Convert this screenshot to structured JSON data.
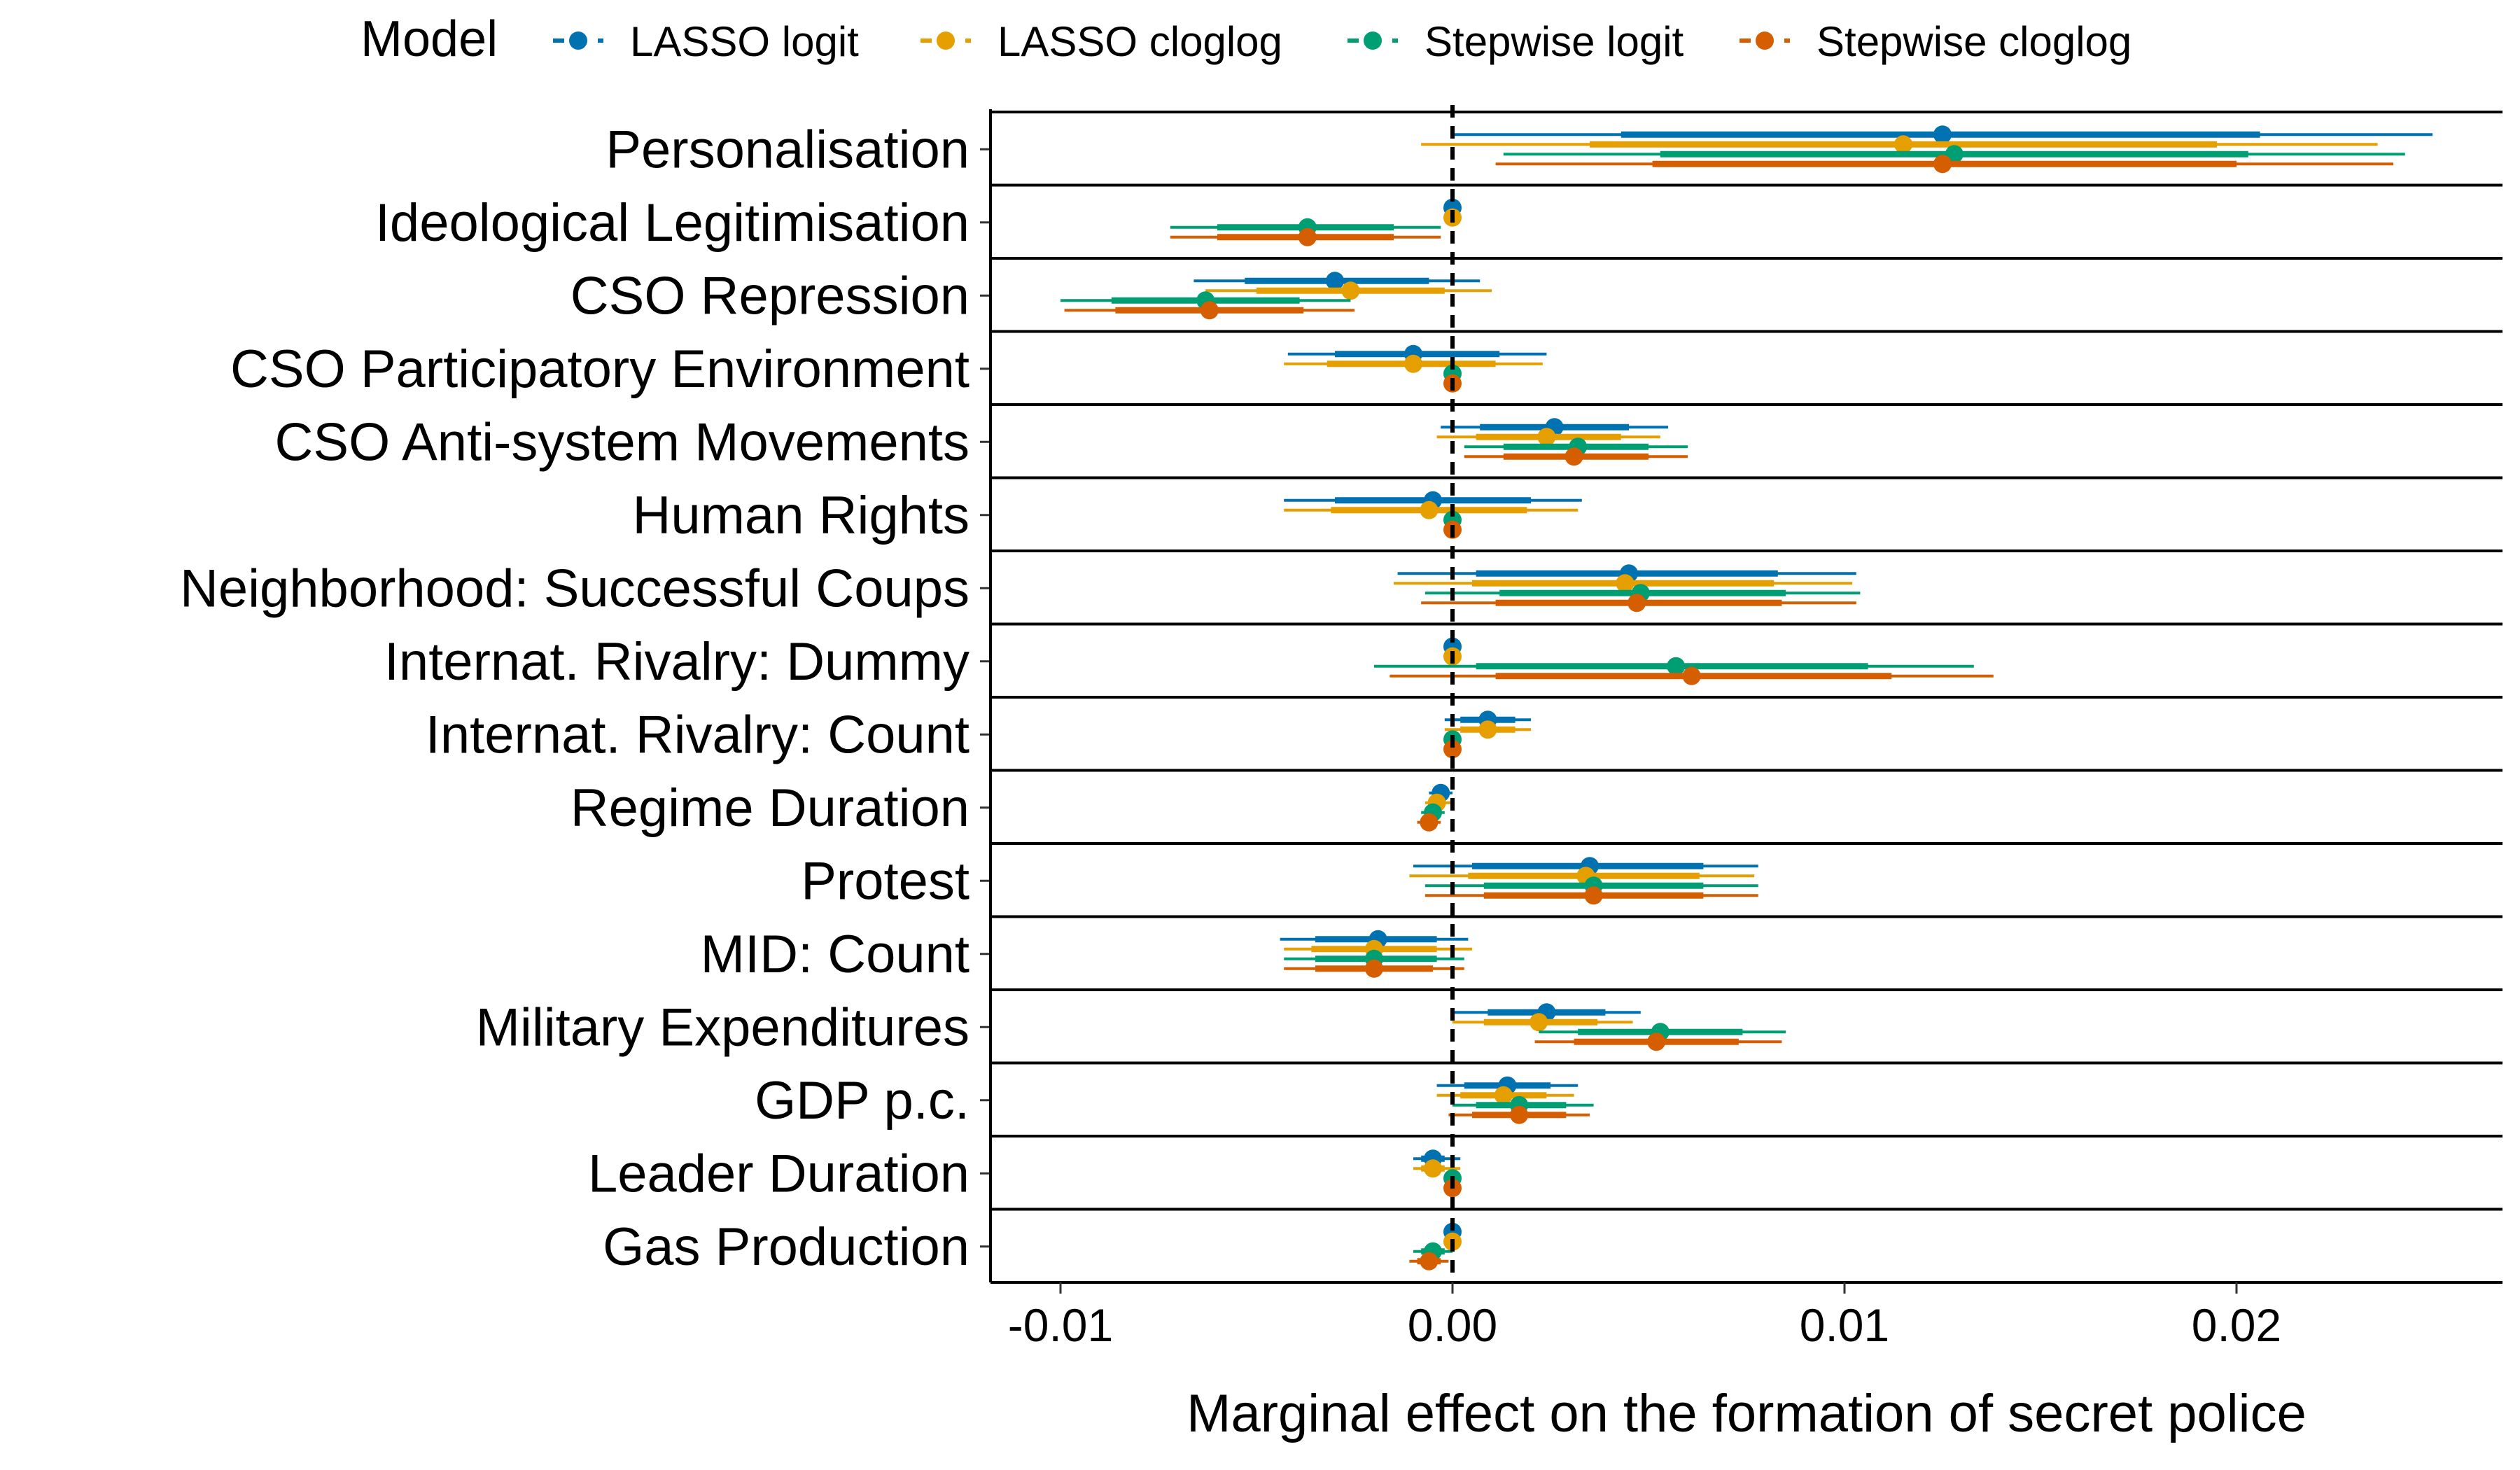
{
  "chart_data": {
    "type": "forest",
    "xlabel": "Marginal effect on the formation of secret police",
    "xlim": [
      -0.0115,
      0.0265
    ],
    "xticks": [
      -0.01,
      0.0,
      0.01,
      0.02
    ],
    "xtick_labels": [
      "-0.01",
      "0.00",
      "0.01",
      "0.02"
    ],
    "reference_line": 0,
    "legend": {
      "title": "Model",
      "position": "top",
      "entries": [
        "LASSO logit",
        "LASSO cloglog",
        "Stepwise logit",
        "Stepwise cloglog"
      ]
    },
    "series": [
      {
        "name": "LASSO logit",
        "color": "#0072B2"
      },
      {
        "name": "LASSO cloglog",
        "color": "#E69F00"
      },
      {
        "name": "Stepwise logit",
        "color": "#009E73"
      },
      {
        "name": "Stepwise cloglog",
        "color": "#D55E00"
      }
    ],
    "variables": [
      {
        "label": "Personalisation",
        "estimates": [
          {
            "est": 0.0125,
            "lo90": 0.0043,
            "hi90": 0.0206,
            "lo95": 0.0,
            "hi95": 0.025
          },
          {
            "est": 0.0115,
            "lo90": 0.0035,
            "hi90": 0.0195,
            "lo95": -0.0008,
            "hi95": 0.0236
          },
          {
            "est": 0.0128,
            "lo90": 0.0053,
            "hi90": 0.0203,
            "lo95": 0.0013,
            "hi95": 0.0243
          },
          {
            "est": 0.0125,
            "lo90": 0.0051,
            "hi90": 0.02,
            "lo95": 0.0011,
            "hi95": 0.024
          }
        ]
      },
      {
        "label": "Ideological Legitimisation",
        "estimates": [
          {
            "est": 0.0,
            "lo90": 0.0,
            "hi90": 0.0,
            "lo95": 0.0,
            "hi95": 0.0
          },
          {
            "est": 0.0,
            "lo90": 0.0,
            "hi90": 0.0,
            "lo95": 0.0,
            "hi95": 0.0
          },
          {
            "est": -0.0037,
            "lo90": -0.006,
            "hi90": -0.0015,
            "lo95": -0.0072,
            "hi95": -0.0003
          },
          {
            "est": -0.0037,
            "lo90": -0.006,
            "hi90": -0.0015,
            "lo95": -0.0072,
            "hi95": -0.0003
          }
        ]
      },
      {
        "label": "CSO Repression",
        "estimates": [
          {
            "est": -0.003,
            "lo90": -0.0053,
            "hi90": -0.0006,
            "lo95": -0.0066,
            "hi95": 0.0007
          },
          {
            "est": -0.0026,
            "lo90": -0.005,
            "hi90": -0.0002,
            "lo95": -0.0063,
            "hi95": 0.001
          },
          {
            "est": -0.0063,
            "lo90": -0.0087,
            "hi90": -0.0039,
            "lo95": -0.01,
            "hi95": -0.0026
          },
          {
            "est": -0.0062,
            "lo90": -0.0086,
            "hi90": -0.0038,
            "lo95": -0.0099,
            "hi95": -0.0025
          }
        ]
      },
      {
        "label": "CSO Participatory Environment",
        "estimates": [
          {
            "est": -0.001,
            "lo90": -0.003,
            "hi90": 0.0012,
            "lo95": -0.0042,
            "hi95": 0.0024
          },
          {
            "est": -0.001,
            "lo90": -0.0032,
            "hi90": 0.0011,
            "lo95": -0.0043,
            "hi95": 0.0023
          },
          {
            "est": 0.0,
            "lo90": 0.0,
            "hi90": 0.0,
            "lo95": 0.0,
            "hi95": 0.0
          },
          {
            "est": 0.0,
            "lo90": 0.0,
            "hi90": 0.0,
            "lo95": 0.0,
            "hi95": 0.0
          }
        ]
      },
      {
        "label": "CSO Anti-system Movements",
        "estimates": [
          {
            "est": 0.0026,
            "lo90": 0.0007,
            "hi90": 0.0045,
            "lo95": -0.0003,
            "hi95": 0.0055
          },
          {
            "est": 0.0024,
            "lo90": 0.0006,
            "hi90": 0.0043,
            "lo95": -0.0004,
            "hi95": 0.0053
          },
          {
            "est": 0.0032,
            "lo90": 0.0013,
            "hi90": 0.005,
            "lo95": 0.0003,
            "hi95": 0.006
          },
          {
            "est": 0.0031,
            "lo90": 0.0013,
            "hi90": 0.005,
            "lo95": 0.0003,
            "hi95": 0.006
          }
        ]
      },
      {
        "label": "Human Rights",
        "estimates": [
          {
            "est": -0.0005,
            "lo90": -0.003,
            "hi90": 0.002,
            "lo95": -0.0043,
            "hi95": 0.0033
          },
          {
            "est": -0.0006,
            "lo90": -0.0031,
            "hi90": 0.0019,
            "lo95": -0.0043,
            "hi95": 0.0032
          },
          {
            "est": 0.0,
            "lo90": 0.0,
            "hi90": 0.0,
            "lo95": 0.0,
            "hi95": 0.0
          },
          {
            "est": 0.0,
            "lo90": 0.0,
            "hi90": 0.0,
            "lo95": 0.0,
            "hi95": 0.0
          }
        ]
      },
      {
        "label": "Neighborhood: Successful Coups",
        "estimates": [
          {
            "est": 0.0045,
            "lo90": 0.0006,
            "hi90": 0.0083,
            "lo95": -0.0014,
            "hi95": 0.0103
          },
          {
            "est": 0.0044,
            "lo90": 0.0005,
            "hi90": 0.0082,
            "lo95": -0.0015,
            "hi95": 0.0102
          },
          {
            "est": 0.0048,
            "lo90": 0.0012,
            "hi90": 0.0085,
            "lo95": -0.0007,
            "hi95": 0.0104
          },
          {
            "est": 0.0047,
            "lo90": 0.0011,
            "hi90": 0.0084,
            "lo95": -0.0008,
            "hi95": 0.0103
          }
        ]
      },
      {
        "label": "Internat. Rivalry: Dummy",
        "estimates": [
          {
            "est": 0.0,
            "lo90": 0.0,
            "hi90": 0.0,
            "lo95": 0.0,
            "hi95": 0.0
          },
          {
            "est": 0.0,
            "lo90": 0.0,
            "hi90": 0.0,
            "lo95": 0.0,
            "hi95": 0.0
          },
          {
            "est": 0.0057,
            "lo90": 0.0006,
            "hi90": 0.0106,
            "lo95": -0.002,
            "hi95": 0.0133
          },
          {
            "est": 0.0061,
            "lo90": 0.0011,
            "hi90": 0.0112,
            "lo95": -0.0016,
            "hi95": 0.0138
          }
        ]
      },
      {
        "label": "Internat. Rivalry: Count",
        "estimates": [
          {
            "est": 0.0009,
            "lo90": 0.0002,
            "hi90": 0.0016,
            "lo95": -0.0002,
            "hi95": 0.002
          },
          {
            "est": 0.0009,
            "lo90": 0.0002,
            "hi90": 0.0016,
            "lo95": -0.0002,
            "hi95": 0.002
          },
          {
            "est": 0.0,
            "lo90": 0.0,
            "hi90": 0.0,
            "lo95": 0.0,
            "hi95": 0.0
          },
          {
            "est": 0.0,
            "lo90": 0.0,
            "hi90": 0.0,
            "lo95": 0.0,
            "hi95": 0.0
          }
        ]
      },
      {
        "label": "Regime Duration",
        "estimates": [
          {
            "est": -0.0003,
            "lo90": -0.0005,
            "hi90": -0.0001,
            "lo95": -0.0006,
            "hi95": 0.0
          },
          {
            "est": -0.0004,
            "lo90": -0.0006,
            "hi90": -0.0002,
            "lo95": -0.0007,
            "hi95": 0.0
          },
          {
            "est": -0.0005,
            "lo90": -0.0007,
            "hi90": -0.0003,
            "lo95": -0.0008,
            "hi95": -0.0002
          },
          {
            "est": -0.0006,
            "lo90": -0.0008,
            "hi90": -0.0004,
            "lo95": -0.0009,
            "hi95": -0.0003
          }
        ]
      },
      {
        "label": "Protest",
        "estimates": [
          {
            "est": 0.0035,
            "lo90": 0.0005,
            "hi90": 0.0064,
            "lo95": -0.001,
            "hi95": 0.0078
          },
          {
            "est": 0.0034,
            "lo90": 0.0004,
            "hi90": 0.0063,
            "lo95": -0.0011,
            "hi95": 0.0077
          },
          {
            "est": 0.0036,
            "lo90": 0.0008,
            "hi90": 0.0064,
            "lo95": -0.0007,
            "hi95": 0.0078
          },
          {
            "est": 0.0036,
            "lo90": 0.0008,
            "hi90": 0.0064,
            "lo95": -0.0007,
            "hi95": 0.0078
          }
        ]
      },
      {
        "label": "MID: Count",
        "estimates": [
          {
            "est": -0.0019,
            "lo90": -0.0035,
            "hi90": -0.0004,
            "lo95": -0.0044,
            "hi95": 0.0004
          },
          {
            "est": -0.002,
            "lo90": -0.0036,
            "hi90": -0.0004,
            "lo95": -0.0043,
            "hi95": 0.0005
          },
          {
            "est": -0.002,
            "lo90": -0.0035,
            "hi90": -0.0004,
            "lo95": -0.0043,
            "hi95": 0.0003
          },
          {
            "est": -0.002,
            "lo90": -0.0035,
            "hi90": -0.0005,
            "lo95": -0.0043,
            "hi95": 0.0003
          }
        ]
      },
      {
        "label": "Military Expenditures",
        "estimates": [
          {
            "est": 0.0024,
            "lo90": 0.0009,
            "hi90": 0.0039,
            "lo95": 0.0,
            "hi95": 0.0048
          },
          {
            "est": 0.0022,
            "lo90": 0.0008,
            "hi90": 0.0037,
            "lo95": 0.0,
            "hi95": 0.0046
          },
          {
            "est": 0.0053,
            "lo90": 0.0032,
            "hi90": 0.0074,
            "lo95": 0.0022,
            "hi95": 0.0085
          },
          {
            "est": 0.0052,
            "lo90": 0.0031,
            "hi90": 0.0073,
            "lo95": 0.0021,
            "hi95": 0.0084
          }
        ]
      },
      {
        "label": "GDP p.c.",
        "estimates": [
          {
            "est": 0.0014,
            "lo90": 0.0003,
            "hi90": 0.0025,
            "lo95": -0.0004,
            "hi95": 0.0032
          },
          {
            "est": 0.0013,
            "lo90": 0.0002,
            "hi90": 0.0024,
            "lo95": -0.0004,
            "hi95": 0.0031
          },
          {
            "est": 0.0017,
            "lo90": 0.0006,
            "hi90": 0.0029,
            "lo95": 0.0,
            "hi95": 0.0036
          },
          {
            "est": 0.0017,
            "lo90": 0.0005,
            "hi90": 0.0029,
            "lo95": -0.0001,
            "hi95": 0.0035
          }
        ]
      },
      {
        "label": "Leader Duration",
        "estimates": [
          {
            "est": -0.0005,
            "lo90": -0.0008,
            "hi90": -0.0002,
            "lo95": -0.001,
            "hi95": 0.0002
          },
          {
            "est": -0.0005,
            "lo90": -0.0008,
            "hi90": -0.0002,
            "lo95": -0.001,
            "hi95": 0.0002
          },
          {
            "est": 0.0,
            "lo90": 0.0,
            "hi90": 0.0,
            "lo95": 0.0,
            "hi95": 0.0
          },
          {
            "est": 0.0,
            "lo90": 0.0,
            "hi90": 0.0,
            "lo95": 0.0,
            "hi95": 0.0
          }
        ]
      },
      {
        "label": "Gas Production",
        "estimates": [
          {
            "est": 0.0,
            "lo90": 0.0,
            "hi90": 0.0,
            "lo95": 0.0,
            "hi95": 0.0
          },
          {
            "est": 0.0,
            "lo90": 0.0,
            "hi90": 0.0,
            "lo95": 0.0,
            "hi95": 0.0
          },
          {
            "est": -0.0005,
            "lo90": -0.0008,
            "hi90": -0.0002,
            "lo95": -0.001,
            "hi95": 0.0
          },
          {
            "est": -0.0006,
            "lo90": -0.0009,
            "hi90": -0.0003,
            "lo95": -0.0011,
            "hi95": -0.0001
          }
        ]
      }
    ]
  }
}
